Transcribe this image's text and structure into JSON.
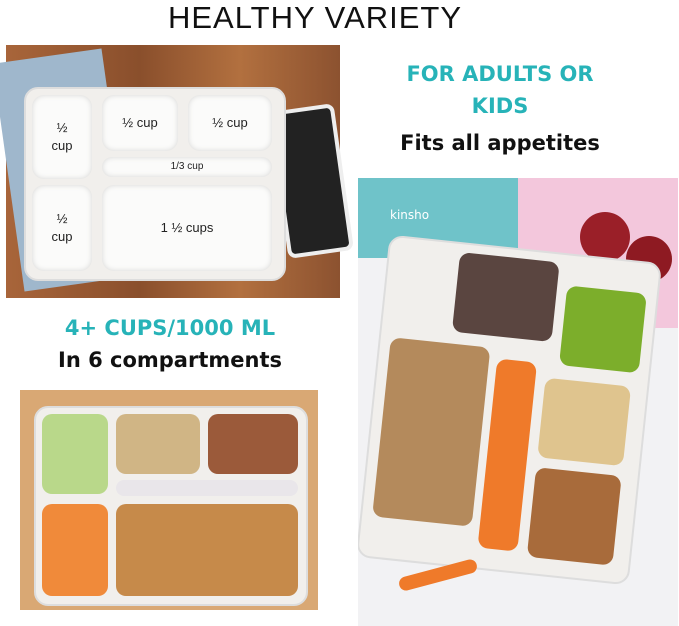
{
  "title": "HEALTHY VARIETY",
  "right_text": {
    "line1": "FOR ADULTS OR",
    "line2": "KIDS",
    "line3": "Fits all appetites"
  },
  "left_text": {
    "line1": "4+ CUPS/1000 ML",
    "line2": "In 6 compartments"
  },
  "tray_labels": {
    "c1": "½\ncup",
    "c2": "½ cup",
    "c3": "½ cup",
    "c4": "1/3 cup",
    "c5": "½\ncup",
    "c6": "1 ½ cups"
  },
  "brand_logo": "kinsho",
  "colors": {
    "teal": "#27b3b8",
    "wood": "#9a5a33"
  }
}
